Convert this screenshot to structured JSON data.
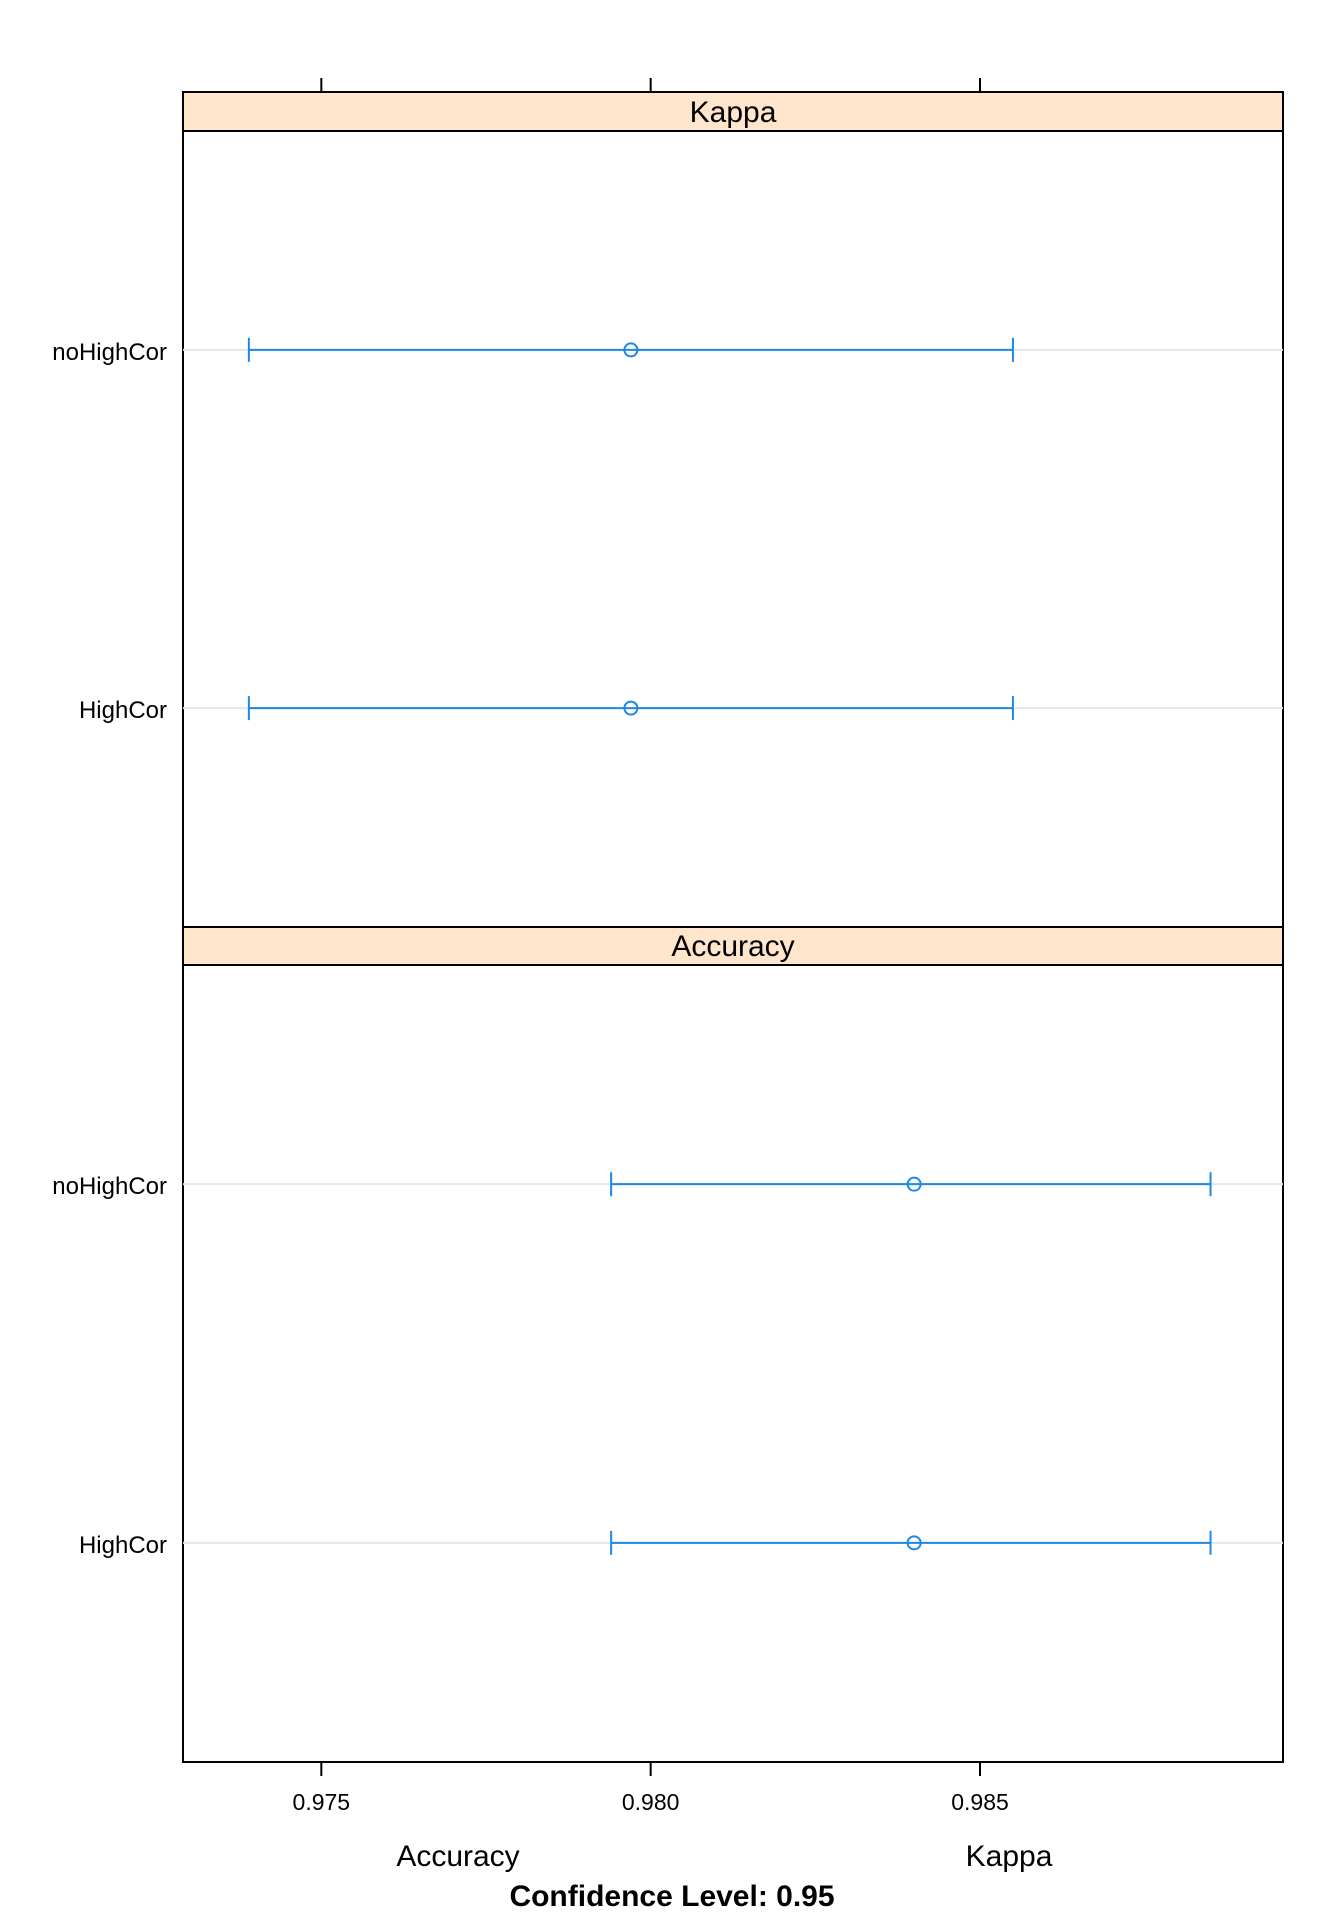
{
  "chart_data": {
    "type": "dotplot-interval",
    "xlim": [
      0.9729,
      0.9896
    ],
    "x_ticks": [
      0.975,
      0.98,
      0.985
    ],
    "x_tick_labels": [
      "0.975",
      "0.980",
      "0.985"
    ],
    "categories": [
      "noHighCor",
      "HighCor"
    ],
    "bottom_labels": [
      "Accuracy",
      "Kappa"
    ],
    "footer": "Confidence Level: 0.95",
    "panels": [
      {
        "title": "Kappa",
        "rows": [
          {
            "label": "noHighCor",
            "lower": 0.9739,
            "estimate": 0.9797,
            "upper": 0.9855
          },
          {
            "label": "HighCor",
            "lower": 0.9739,
            "estimate": 0.9797,
            "upper": 0.9855
          }
        ]
      },
      {
        "title": "Accuracy",
        "rows": [
          {
            "label": "noHighCor",
            "lower": 0.9794,
            "estimate": 0.984,
            "upper": 0.9885
          },
          {
            "label": "HighCor",
            "lower": 0.9794,
            "estimate": 0.984,
            "upper": 0.9885
          }
        ]
      }
    ],
    "colors": {
      "strip": "#ffe5cc",
      "interval": "#1e88e5",
      "reference": "#e6e6e6",
      "frame": "#000000"
    }
  }
}
